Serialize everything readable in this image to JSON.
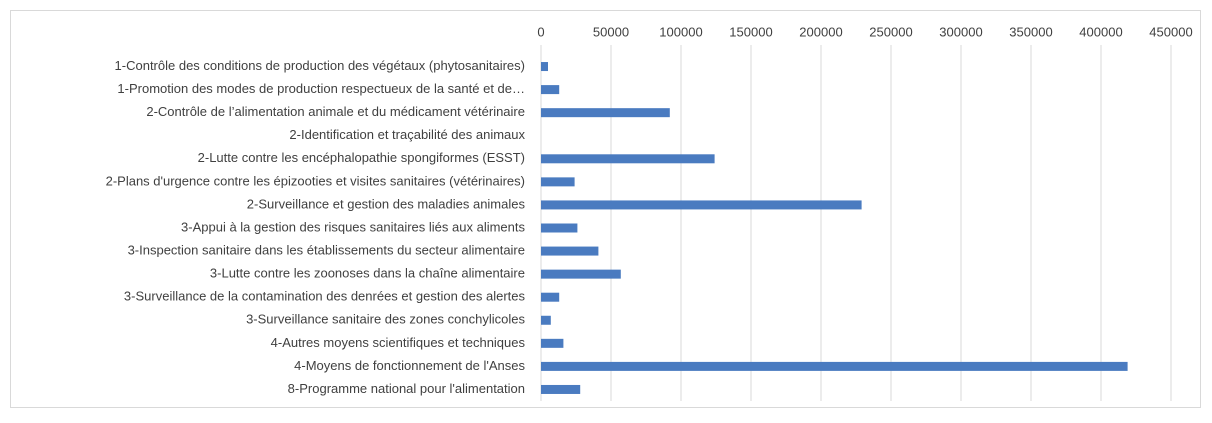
{
  "chart_data": {
    "type": "bar",
    "orientation": "horizontal",
    "categories": [
      "1-Contrôle des conditions de production des végétaux (phytosanitaires)",
      "1-Promotion des modes de production respectueux de la santé et de…",
      "2-Contrôle de l’alimentation animale et du médicament vétérinaire",
      "2-Identification et traçabilité des animaux",
      "2-Lutte contre les encéphalopathie spongiformes (ESST)",
      "2-Plans d'urgence contre les épizooties et visites sanitaires (vétérinaires)",
      "2-Surveillance et gestion des maladies animales",
      "3-Appui à la gestion des risques sanitaires liés aux aliments",
      "3-Inspection sanitaire dans les établissements du secteur alimentaire",
      "3-Lutte contre les zoonoses dans la chaîne alimentaire",
      "3-Surveillance de la contamination des denrées et gestion des alertes",
      "3-Surveillance sanitaire des zones conchylicoles",
      "4-Autres moyens scientifiques et techniques",
      "4-Moyens de fonctionnement de l'Anses",
      "8-Programme national pour l'alimentation"
    ],
    "values": [
      5000,
      13000,
      92000,
      0,
      124000,
      24000,
      229000,
      26000,
      41000,
      57000,
      13000,
      7000,
      16000,
      419000,
      28000
    ],
    "color": "#4a7bc0",
    "xlim": [
      0,
      450000
    ],
    "xticks": [
      0,
      50000,
      100000,
      150000,
      200000,
      250000,
      300000,
      350000,
      400000,
      450000
    ],
    "grid": true
  }
}
